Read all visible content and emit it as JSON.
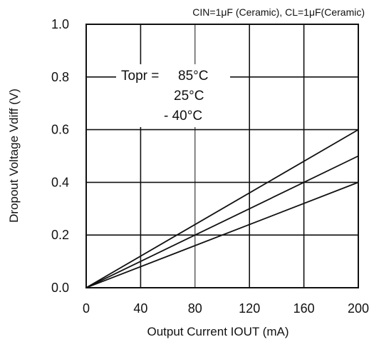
{
  "chart_data": {
    "type": "line",
    "conditions": "CIN=1μF (Ceramic), CL=1μF(Ceramic)",
    "xlabel": "Output Current IOUT (mA)",
    "ylabel": "Dropout Voltage Vdiff (V)",
    "xlim": [
      0,
      200
    ],
    "ylim": [
      0,
      1.0
    ],
    "x_ticks": [
      "0",
      "40",
      "80",
      "120",
      "160",
      "200"
    ],
    "y_ticks": [
      "0.0",
      "0.2",
      "0.4",
      "0.6",
      "0.8",
      "1.0"
    ],
    "grid": true,
    "legend_title": "Topr =",
    "series": [
      {
        "name": "85°C",
        "x": [
          0,
          200
        ],
        "y": [
          0,
          0.6
        ]
      },
      {
        "name": "25°C",
        "x": [
          0,
          200
        ],
        "y": [
          0,
          0.5
        ]
      },
      {
        "name": "- 40°C",
        "x": [
          0,
          200
        ],
        "y": [
          0,
          0.4
        ]
      }
    ]
  },
  "colors": {
    "line": "#111111",
    "grid": "#111111",
    "background": "#ffffff"
  }
}
